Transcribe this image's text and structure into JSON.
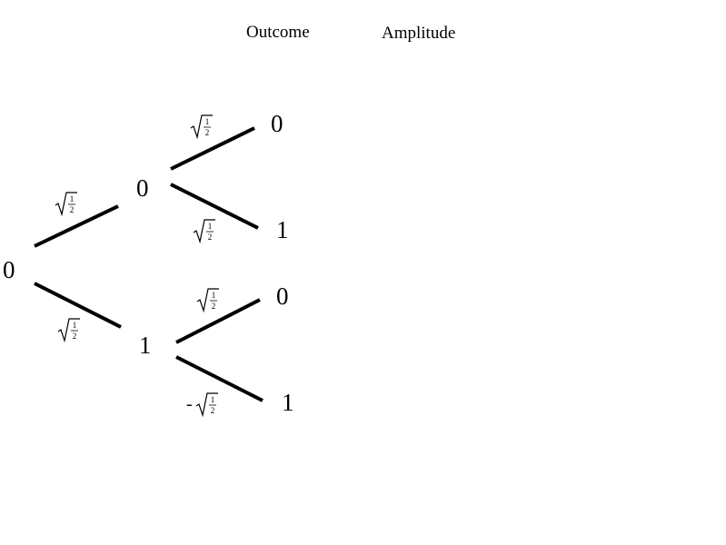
{
  "headers": {
    "outcome": "Outcome",
    "amplitude": "Amplitude"
  },
  "tree": {
    "root": "0",
    "level1": [
      {
        "outcome": "0",
        "amplitude_sign": "",
        "amplitude_radicand_num": "1",
        "amplitude_radicand_den": "2"
      },
      {
        "outcome": "1",
        "amplitude_sign": "",
        "amplitude_radicand_num": "1",
        "amplitude_radicand_den": "2"
      }
    ],
    "level2": [
      {
        "outcome": "0",
        "amplitude_sign": "",
        "amplitude_radicand_num": "1",
        "amplitude_radicand_den": "2"
      },
      {
        "outcome": "1",
        "amplitude_sign": "",
        "amplitude_radicand_num": "1",
        "amplitude_radicand_den": "2"
      },
      {
        "outcome": "0",
        "amplitude_sign": "",
        "amplitude_radicand_num": "1",
        "amplitude_radicand_den": "2"
      },
      {
        "outcome": "1",
        "amplitude_sign": "-",
        "amplitude_radicand_num": "1",
        "amplitude_radicand_den": "2"
      }
    ]
  }
}
